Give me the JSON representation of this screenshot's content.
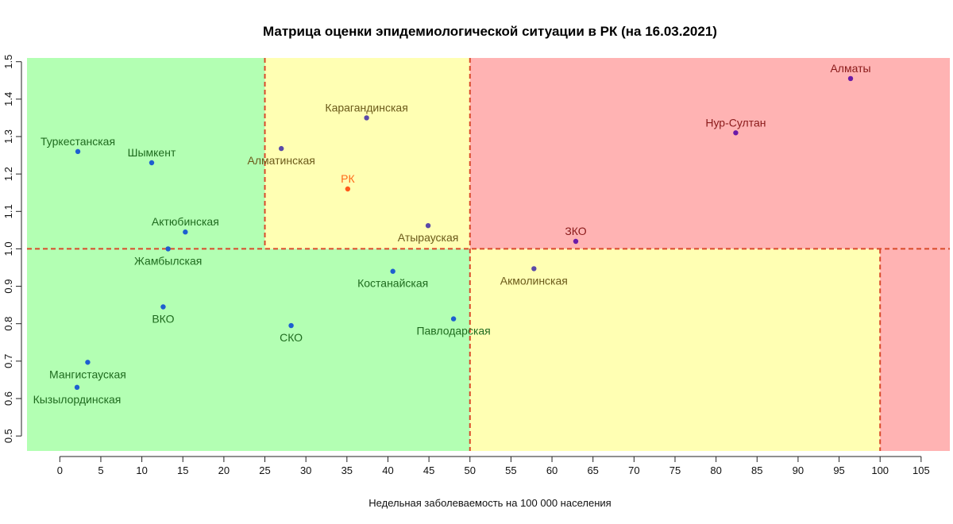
{
  "chart_data": {
    "type": "scatter",
    "title": "Матрица оценки эпидемиологической ситуации в РК (на 16.03.2021)",
    "xlabel": "Недельная заболеваемость на 100 000 населения",
    "ylabel": "",
    "xlim": [
      -4,
      108.5
    ],
    "ylim": [
      0.46,
      1.51
    ],
    "xticks": [
      0,
      5,
      10,
      15,
      20,
      25,
      30,
      35,
      40,
      45,
      50,
      55,
      60,
      65,
      70,
      75,
      80,
      85,
      90,
      95,
      100,
      105
    ],
    "yticks": [
      0.5,
      0.6,
      0.7,
      0.8,
      0.9,
      1.0,
      1.1,
      1.2,
      1.3,
      1.4,
      1.5
    ],
    "ytick_labels": [
      "0.5",
      "0.6",
      "0.7",
      "0.8",
      "0.9",
      "1.0",
      "1.1",
      "1.2",
      "1.3",
      "1.4",
      "1.5"
    ],
    "grid": false,
    "zones": [
      {
        "x": [
          -4,
          25
        ],
        "y": [
          1.0,
          1.51
        ],
        "color": "#b3ffb3"
      },
      {
        "x": [
          -4,
          50
        ],
        "y": [
          0.46,
          1.0
        ],
        "color": "#b3ffb3"
      },
      {
        "x": [
          25,
          50
        ],
        "y": [
          1.0,
          1.51
        ],
        "color": "#ffffb3"
      },
      {
        "x": [
          50,
          100
        ],
        "y": [
          0.46,
          1.0
        ],
        "color": "#ffffb3"
      },
      {
        "x": [
          50,
          108.5
        ],
        "y": [
          1.0,
          1.51
        ],
        "color": "#ffb3b3"
      },
      {
        "x": [
          100,
          108.5
        ],
        "y": [
          0.46,
          1.0
        ],
        "color": "#ffb3b3"
      }
    ],
    "threshold_lines": {
      "color": "#d94a2a",
      "vertical": [
        {
          "x": 25,
          "y": [
            1.0,
            1.51
          ]
        },
        {
          "x": 50,
          "y": [
            0.46,
            1.51
          ]
        },
        {
          "x": 100,
          "y": [
            0.46,
            1.0
          ]
        }
      ],
      "horizontal": [
        {
          "y": 1.0,
          "x": [
            -4,
            108.5
          ]
        }
      ]
    },
    "points": [
      {
        "name": "Туркестанская",
        "x": 2.2,
        "y": 1.26,
        "color": "#1d5fd0",
        "label_color": "#1f6b1f",
        "label_pos": "above"
      },
      {
        "name": "Шымкент",
        "x": 11.2,
        "y": 1.23,
        "color": "#1d5fd0",
        "label_color": "#1f6b1f",
        "label_pos": "above"
      },
      {
        "name": "Актюбинская",
        "x": 15.3,
        "y": 1.045,
        "color": "#1d5fd0",
        "label_color": "#1f6b1f",
        "label_pos": "above"
      },
      {
        "name": "Жамбылская",
        "x": 13.2,
        "y": 1.0,
        "color": "#1d5fd0",
        "label_color": "#1f6b1f",
        "label_pos": "below"
      },
      {
        "name": "ВКО",
        "x": 12.6,
        "y": 0.845,
        "color": "#1d5fd0",
        "label_color": "#1f6b1f",
        "label_pos": "below"
      },
      {
        "name": "СКО",
        "x": 28.2,
        "y": 0.795,
        "color": "#1d5fd0",
        "label_color": "#1f6b1f",
        "label_pos": "below"
      },
      {
        "name": "Мангистауская",
        "x": 3.4,
        "y": 0.697,
        "color": "#1d5fd0",
        "label_color": "#1f6b1f",
        "label_pos": "below"
      },
      {
        "name": "Кызылординская",
        "x": 2.1,
        "y": 0.63,
        "color": "#1d5fd0",
        "label_color": "#1f6b1f",
        "label_pos": "below"
      },
      {
        "name": "Костанайская",
        "x": 40.6,
        "y": 0.94,
        "color": "#1d5fd0",
        "label_color": "#1f6b1f",
        "label_pos": "below"
      },
      {
        "name": "Павлодарская",
        "x": 48.0,
        "y": 0.813,
        "color": "#1d5fd0",
        "label_color": "#1f6b1f",
        "label_pos": "below"
      },
      {
        "name": "Карагандинская",
        "x": 37.4,
        "y": 1.35,
        "color": "#5a4aa8",
        "label_color": "#6b5a1a",
        "label_pos": "above"
      },
      {
        "name": "Алматинская",
        "x": 27.0,
        "y": 1.268,
        "color": "#5a4aa8",
        "label_color": "#6b5a1a",
        "label_pos": "below"
      },
      {
        "name": "РК",
        "x": 35.1,
        "y": 1.16,
        "color": "#ff5a1a",
        "label_color": "#ff6a1a",
        "label_pos": "above"
      },
      {
        "name": "Атырауская",
        "x": 44.9,
        "y": 1.062,
        "color": "#5a4aa8",
        "label_color": "#6b5a1a",
        "label_pos": "below"
      },
      {
        "name": "Акмолинская",
        "x": 57.8,
        "y": 0.947,
        "color": "#5a4aa8",
        "label_color": "#6b5a1a",
        "label_pos": "below"
      },
      {
        "name": "ЗКО",
        "x": 62.9,
        "y": 1.02,
        "color": "#6a1aa8",
        "label_color": "#8a1a1a",
        "label_pos": "above"
      },
      {
        "name": "Нур-Султан",
        "x": 82.4,
        "y": 1.31,
        "color": "#6a1aa8",
        "label_color": "#8a1a1a",
        "label_pos": "above"
      },
      {
        "name": "Алматы",
        "x": 96.4,
        "y": 1.455,
        "color": "#6a1aa8",
        "label_color": "#8a1a1a",
        "label_pos": "above"
      }
    ]
  }
}
